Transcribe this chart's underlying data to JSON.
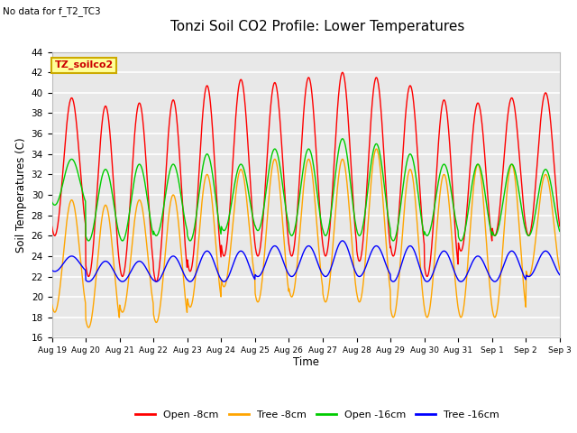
{
  "title": "Tonzi Soil CO2 Profile: Lower Temperatures",
  "subtitle": "No data for f_T2_TC3",
  "ylabel": "Soil Temperatures (C)",
  "xlabel": "Time",
  "ylim": [
    16,
    44
  ],
  "yticks": [
    16,
    18,
    20,
    22,
    24,
    26,
    28,
    30,
    32,
    34,
    36,
    38,
    40,
    42,
    44
  ],
  "legend_label": "TZ_soilco2",
  "legend_box_color": "#ffff99",
  "legend_box_edge": "#ccaa00",
  "series_colors": {
    "open_8cm": "#ff0000",
    "tree_8cm": "#ffa500",
    "open_16cm": "#00cc00",
    "tree_16cm": "#0000ff"
  },
  "series_labels": {
    "open_8cm": "Open -8cm",
    "tree_8cm": "Tree -8cm",
    "open_16cm": "Open -16cm",
    "tree_16cm": "Tree -16cm"
  },
  "background_color": "#ffffff",
  "plot_bg_color": "#e8e8e8",
  "n_days": 15,
  "start_day": 19,
  "open_8cm_peaks": [
    39.5,
    38.7,
    39.0,
    39.3,
    40.7,
    41.3,
    41.0,
    41.5,
    42.0,
    41.5,
    40.7,
    39.3,
    39.0,
    39.5,
    40.0
  ],
  "open_8cm_valleys": [
    26.0,
    22.0,
    22.0,
    21.5,
    22.5,
    24.0,
    24.0,
    24.0,
    24.0,
    23.5,
    24.0,
    22.0,
    24.5,
    26.0,
    26.0
  ],
  "tree_8cm_peaks": [
    29.5,
    29.0,
    29.5,
    30.0,
    32.0,
    32.5,
    33.5,
    33.5,
    33.5,
    34.5,
    32.5,
    32.0,
    33.0,
    33.0,
    32.0
  ],
  "tree_8cm_valleys": [
    18.5,
    17.0,
    18.5,
    17.5,
    19.0,
    21.0,
    19.5,
    20.0,
    19.5,
    19.5,
    18.0,
    18.0,
    18.0,
    18.0,
    22.0
  ],
  "open_16cm_peaks": [
    33.5,
    32.5,
    33.0,
    33.0,
    34.0,
    33.0,
    34.5,
    34.5,
    35.5,
    35.0,
    34.0,
    33.0,
    33.0,
    33.0,
    32.5
  ],
  "open_16cm_valleys": [
    29.0,
    25.5,
    25.5,
    26.0,
    25.5,
    26.5,
    26.5,
    26.0,
    26.0,
    26.0,
    25.5,
    26.0,
    25.5,
    26.0,
    26.0
  ],
  "tree_16cm_peaks": [
    24.0,
    23.5,
    23.5,
    24.0,
    24.5,
    24.5,
    25.0,
    25.0,
    25.5,
    25.0,
    25.0,
    24.5,
    24.0,
    24.5,
    24.5
  ],
  "tree_16cm_valleys": [
    22.5,
    21.5,
    21.5,
    21.5,
    21.5,
    21.5,
    22.0,
    22.0,
    22.0,
    22.0,
    21.5,
    21.5,
    21.5,
    21.5,
    22.0
  ]
}
